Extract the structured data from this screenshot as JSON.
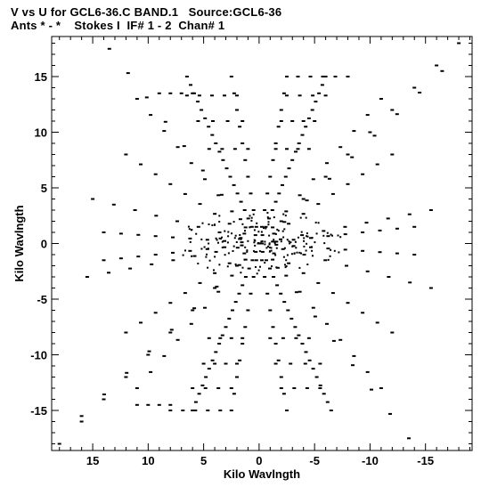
{
  "title_line1": "V vs U for GCL6-36.C BAND.1   Source:GCL6-36",
  "title_line2": "Ants * - *    Stokes I  IF# 1 - 2  Chan# 1",
  "chart_data": {
    "type": "scatter",
    "title": "V vs U for GCL6-36.C BAND.1   Source:GCL6-36",
    "subtitle": "Ants * - *    Stokes I  IF# 1 - 2  Chan# 1",
    "xlabel": "Kilo Wavlngth",
    "ylabel": "Kilo Wavlngth",
    "xlim": [
      18.7,
      -19.2
    ],
    "ylim": [
      -18.6,
      18.6
    ],
    "x_ticks": [
      15,
      10,
      5,
      0,
      -5,
      -10,
      -15
    ],
    "y_ticks": [
      15,
      10,
      5,
      0,
      -5,
      -10,
      -15
    ],
    "x_tick_labels": [
      "15",
      "10",
      "5",
      "0",
      "-5",
      "-10",
      "-15"
    ],
    "y_tick_labels": [
      "15",
      "10",
      "5",
      "0",
      "-5",
      "-10",
      "-15"
    ],
    "grid": false,
    "legend": false,
    "marker_color": "#000000",
    "tracks": [
      {
        "from": [
          18.0,
          -18.0
        ],
        "to": [
          -18.0,
          18.0
        ],
        "n": 18
      },
      {
        "from": [
          -18.0,
          18.0
        ],
        "to": [
          18.0,
          -18.0
        ],
        "n": 0
      },
      {
        "from": [
          -13.5,
          -17.5
        ],
        "to": [
          13.5,
          17.5
        ],
        "n": 16
      },
      {
        "from": [
          13.0,
          17.5
        ],
        "to": [
          -13.0,
          -17.5
        ],
        "n": 0
      },
      {
        "from": [
          16.0,
          -15.5
        ],
        "to": [
          -16.5,
          15.5
        ],
        "n": 16
      },
      {
        "from": [
          15.0,
          4.0
        ],
        "to": [
          -15.5,
          -4.0
        ],
        "n": 16
      },
      {
        "from": [
          15.5,
          -3.0
        ],
        "to": [
          -15.5,
          3.0
        ],
        "n": 16
      },
      {
        "from": [
          6.5,
          15.0
        ],
        "to": [
          -6.5,
          -15.0
        ],
        "n": 40
      },
      {
        "from": [
          -6.0,
          15.0
        ],
        "to": [
          6.0,
          -15.0
        ],
        "n": 40
      },
      {
        "from": [
          -2.5,
          15.0
        ],
        "to": [
          2.5,
          -15.0
        ],
        "n": 20
      },
      {
        "from": [
          2.5,
          15.0
        ],
        "to": [
          -2.5,
          -15.0
        ],
        "n": 20
      },
      {
        "from": [
          11.0,
          13.0
        ],
        "to": [
          -11.0,
          -13.0
        ],
        "n": 18
      },
      {
        "from": [
          -11.0,
          13.0
        ],
        "to": [
          11.0,
          -13.0
        ],
        "n": 18
      },
      {
        "from": [
          12.0,
          8.0
        ],
        "to": [
          -12.0,
          -8.0
        ],
        "n": 18
      },
      {
        "from": [
          -12.0,
          8.0
        ],
        "to": [
          12.0,
          -8.0
        ],
        "n": 18
      },
      {
        "from": [
          14.0,
          1.0
        ],
        "to": [
          -14.0,
          -1.0
        ],
        "n": 18
      },
      {
        "from": [
          -14.0,
          1.5
        ],
        "to": [
          14.0,
          -1.5
        ],
        "n": 18
      }
    ],
    "rows": [
      {
        "v": 13.3,
        "u_from": 6.5,
        "u_to": 2.0,
        "n": 5
      },
      {
        "v": 13.3,
        "u_from": -2.5,
        "u_to": -6.0,
        "n": 4
      },
      {
        "v": 11.0,
        "u_from": 5.5,
        "u_to": 1.5,
        "n": 4
      },
      {
        "v": 11.0,
        "u_from": -2.0,
        "u_to": -5.0,
        "n": 4
      },
      {
        "v": 8.5,
        "u_from": 4.5,
        "u_to": 1.0,
        "n": 4
      },
      {
        "v": 8.5,
        "u_from": -1.5,
        "u_to": -4.5,
        "n": 4
      },
      {
        "v": -8.5,
        "u_from": 4.5,
        "u_to": 1.5,
        "n": 4
      },
      {
        "v": -8.5,
        "u_from": -1.0,
        "u_to": -4.5,
        "n": 4
      },
      {
        "v": -10.8,
        "u_from": 5.0,
        "u_to": 2.0,
        "n": 4
      },
      {
        "v": -10.8,
        "u_from": -1.5,
        "u_to": -5.5,
        "n": 4
      },
      {
        "v": -13.0,
        "u_from": 6.0,
        "u_to": 2.5,
        "n": 4
      },
      {
        "v": -13.0,
        "u_from": -2.0,
        "u_to": -5.5,
        "n": 4
      },
      {
        "v": 15.0,
        "u_from": -3.5,
        "u_to": -8.0,
        "n": 5
      },
      {
        "v": 13.5,
        "u_from": 9.0,
        "u_to": 6.0,
        "n": 4
      },
      {
        "v": -15.0,
        "u_from": 8.0,
        "u_to": 3.5,
        "n": 5
      },
      {
        "v": -14.5,
        "u_from": 11.0,
        "u_to": 8.0,
        "n": 4
      }
    ],
    "core_points": 180
  }
}
